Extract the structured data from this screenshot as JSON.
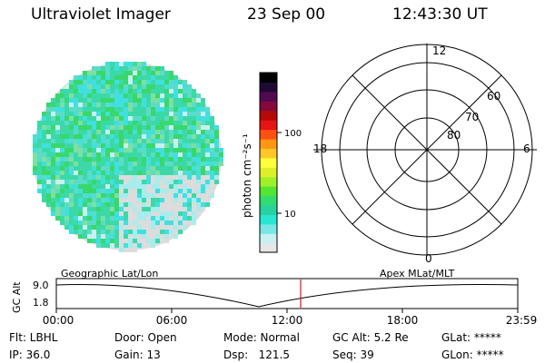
{
  "header": {
    "title": "Ultraviolet Imager",
    "date": "23 Sep 00",
    "time": "12:43:30 UT"
  },
  "colorbar": {
    "label": "photon cm⁻²s⁻¹",
    "ticks": [
      "100",
      "10"
    ],
    "colors": [
      "#e6e6e6",
      "#c8f0f0",
      "#78e6e6",
      "#28e6d2",
      "#28d2a0",
      "#32dc6e",
      "#50e632",
      "#a0f028",
      "#dcf028",
      "#ffff3c",
      "#ffc828",
      "#ff9614",
      "#ff5014",
      "#e61414",
      "#b40a0a",
      "#820a3c",
      "#500a50",
      "#1e0a32",
      "#000000"
    ]
  },
  "polar": {
    "mlt_labels": [
      "12",
      "18",
      "6",
      "0"
    ],
    "lat_labels": [
      "60",
      "70",
      "80"
    ]
  },
  "timeline": {
    "left_label": "Geographic Lat/Lon",
    "right_label": "Apex MLat/MLT",
    "ylabel": "GC Alt",
    "ytick_top": "9.0",
    "ytick_bottom": "1.8",
    "xticks": [
      "00:00",
      "06:00",
      "12:00",
      "18:00",
      "23:59"
    ],
    "current_time_color": "#e01010"
  },
  "status": {
    "flt": "Flt: LBHL",
    "ip": "IP: 36.0",
    "door": "Door: Open",
    "gain": "Gain: 13",
    "mode": "Mode: Normal",
    "dsp": "Dsp:   121.5",
    "gcalt": "GC Alt: 5.2 Re",
    "seq": "Seq: 39",
    "glat": "GLat: *****",
    "glon": "GLon: *****"
  },
  "image_palette": [
    "#3cd9a8",
    "#5bdcc8",
    "#40e0e0",
    "#38d86a",
    "#7ee0a0",
    "#a8ecec",
    "#dcdcdc",
    "#c8f0f0"
  ]
}
